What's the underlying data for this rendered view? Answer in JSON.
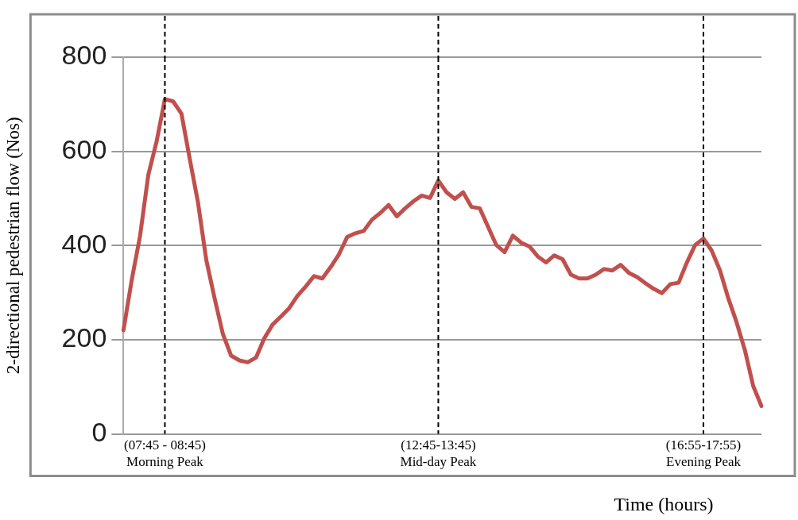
{
  "chart_data": {
    "type": "line",
    "xlabel": "Time (hours)",
    "ylabel": "2-directional pedestrian flow (Nos)",
    "categories": [
      null,
      null,
      null,
      null,
      null,
      "(07:45 - 08:45)\nMorning Peak",
      null,
      null,
      null,
      null,
      null,
      null,
      null,
      null,
      null,
      null,
      null,
      null,
      null,
      null,
      null,
      null,
      null,
      null,
      null,
      null,
      null,
      null,
      null,
      null,
      null,
      null,
      null,
      null,
      null,
      null,
      null,
      null,
      "(12:45-13:45)\nMid-day Peak",
      null,
      null,
      null,
      null,
      null,
      null,
      null,
      null,
      null,
      null,
      null,
      null,
      null,
      null,
      null,
      null,
      null,
      null,
      null,
      null,
      null,
      null,
      null,
      null,
      null,
      null,
      null,
      null,
      null,
      null,
      null,
      "(16:55-17:55)\nEvening Peak",
      null,
      null,
      null,
      null,
      null,
      null,
      null
    ],
    "series": [
      {
        "color": "#c0504d",
        "values": [
          220,
          327,
          420,
          550,
          621,
          711,
          706,
          680,
          584,
          491,
          369,
          288,
          212,
          166,
          156,
          152,
          162,
          203,
          232,
          249,
          267,
          293,
          313,
          335,
          330,
          354,
          381,
          418,
          426,
          431,
          455,
          469,
          486,
          462,
          479,
          494,
          506,
          501,
          538,
          513,
          499,
          513,
          482,
          479,
          440,
          401,
          386,
          421,
          406,
          398,
          377,
          364,
          379,
          371,
          338,
          330,
          330,
          338,
          350,
          347,
          359,
          342,
          333,
          320,
          308,
          299,
          318,
          321,
          364,
          401,
          415,
          389,
          347,
          288,
          237,
          178,
          102,
          59
        ]
      }
    ],
    "ylim": [
      0,
      800
    ],
    "yticks": [
      0,
      200,
      400,
      600,
      800
    ],
    "grid": "y",
    "legend": false,
    "marker": "none",
    "line_style": "solid",
    "ref_lines": [
      {
        "axis": "x",
        "value": "(07:45 - 08:45)\nMorning Peak",
        "color": "#000000",
        "line_style": "dashed"
      },
      {
        "axis": "x",
        "value": "(12:45-13:45)\nMid-day Peak",
        "color": "#000000",
        "line_style": "dashed"
      },
      {
        "axis": "x",
        "value": "(16:55-17:55)\nEvening Peak",
        "color": "#000000",
        "line_style": "dashed"
      }
    ]
  }
}
